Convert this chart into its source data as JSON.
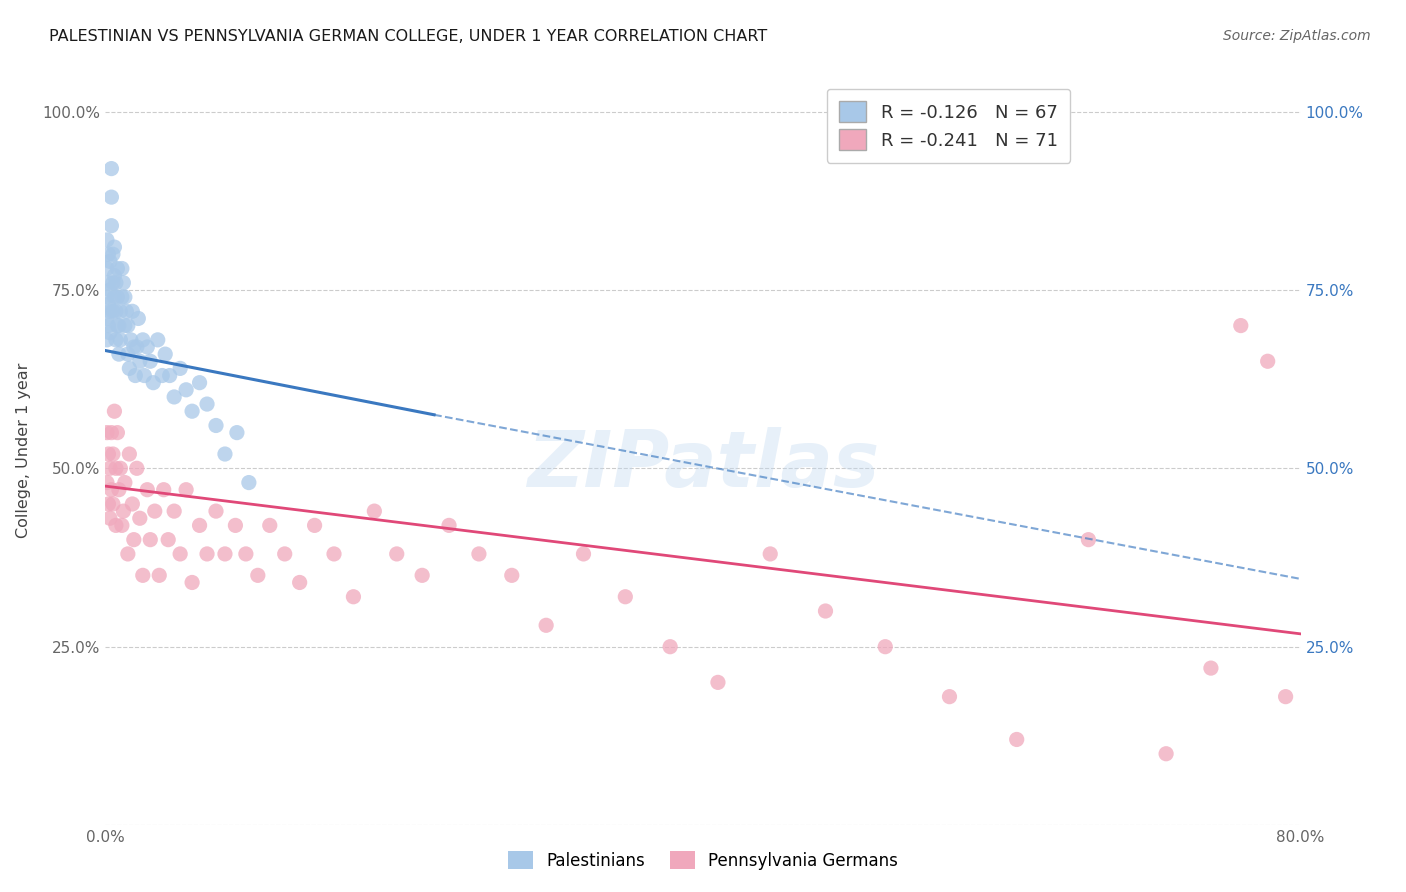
{
  "title": "PALESTINIAN VS PENNSYLVANIA GERMAN COLLEGE, UNDER 1 YEAR CORRELATION CHART",
  "source": "Source: ZipAtlas.com",
  "ylabel": "College, Under 1 year",
  "ytick_vals": [
    0.0,
    0.25,
    0.5,
    0.75,
    1.0
  ],
  "ytick_labels": [
    "",
    "25.0%",
    "50.0%",
    "75.0%",
    "100.0%"
  ],
  "xtick_vals": [
    0.0,
    0.1,
    0.2,
    0.3,
    0.4,
    0.5,
    0.6,
    0.7,
    0.8
  ],
  "xtick_labels": [
    "0.0%",
    "",
    "",
    "",
    "",
    "",
    "",
    "",
    "80.0%"
  ],
  "legend1_text": "R = -0.126   N = 67",
  "legend2_text": "R = -0.241   N = 71",
  "blue_scatter_color": "#a8c8e8",
  "pink_scatter_color": "#f0a8bc",
  "blue_line_color": "#3a78c0",
  "pink_line_color": "#e04878",
  "watermark": "ZIPatlas",
  "bottom_legend1": "Palestinians",
  "bottom_legend2": "Pennsylvania Germans",
  "xmin": 0.0,
  "xmax": 0.8,
  "ymin": 0.0,
  "ymax": 1.05,
  "pal_x": [
    0.001,
    0.001,
    0.001,
    0.001,
    0.001,
    0.002,
    0.002,
    0.002,
    0.002,
    0.003,
    0.003,
    0.003,
    0.003,
    0.004,
    0.004,
    0.004,
    0.005,
    0.005,
    0.005,
    0.006,
    0.006,
    0.006,
    0.007,
    0.007,
    0.007,
    0.008,
    0.008,
    0.008,
    0.009,
    0.009,
    0.01,
    0.01,
    0.011,
    0.011,
    0.012,
    0.013,
    0.013,
    0.014,
    0.015,
    0.015,
    0.016,
    0.017,
    0.018,
    0.019,
    0.02,
    0.021,
    0.022,
    0.023,
    0.025,
    0.026,
    0.028,
    0.03,
    0.032,
    0.035,
    0.038,
    0.04,
    0.043,
    0.046,
    0.05,
    0.054,
    0.058,
    0.063,
    0.068,
    0.074,
    0.08,
    0.088,
    0.096
  ],
  "pal_y": [
    0.68,
    0.71,
    0.74,
    0.78,
    0.82,
    0.7,
    0.73,
    0.76,
    0.8,
    0.69,
    0.72,
    0.75,
    0.79,
    0.84,
    0.88,
    0.92,
    0.72,
    0.76,
    0.8,
    0.74,
    0.77,
    0.81,
    0.68,
    0.72,
    0.76,
    0.7,
    0.74,
    0.78,
    0.66,
    0.7,
    0.68,
    0.72,
    0.74,
    0.78,
    0.76,
    0.7,
    0.74,
    0.72,
    0.66,
    0.7,
    0.64,
    0.68,
    0.72,
    0.67,
    0.63,
    0.67,
    0.71,
    0.65,
    0.68,
    0.63,
    0.67,
    0.65,
    0.62,
    0.68,
    0.63,
    0.66,
    0.63,
    0.6,
    0.64,
    0.61,
    0.58,
    0.62,
    0.59,
    0.56,
    0.52,
    0.55,
    0.48
  ],
  "pag_x": [
    0.001,
    0.001,
    0.002,
    0.002,
    0.003,
    0.003,
    0.004,
    0.004,
    0.005,
    0.005,
    0.006,
    0.007,
    0.007,
    0.008,
    0.009,
    0.01,
    0.011,
    0.012,
    0.013,
    0.015,
    0.016,
    0.018,
    0.019,
    0.021,
    0.023,
    0.025,
    0.028,
    0.03,
    0.033,
    0.036,
    0.039,
    0.042,
    0.046,
    0.05,
    0.054,
    0.058,
    0.063,
    0.068,
    0.074,
    0.08,
    0.087,
    0.094,
    0.102,
    0.11,
    0.12,
    0.13,
    0.14,
    0.153,
    0.166,
    0.18,
    0.195,
    0.212,
    0.23,
    0.25,
    0.272,
    0.295,
    0.32,
    0.348,
    0.378,
    0.41,
    0.445,
    0.482,
    0.522,
    0.565,
    0.61,
    0.658,
    0.71,
    0.74,
    0.76,
    0.778,
    0.79
  ],
  "pag_y": [
    0.55,
    0.48,
    0.52,
    0.45,
    0.5,
    0.43,
    0.55,
    0.47,
    0.52,
    0.45,
    0.58,
    0.5,
    0.42,
    0.55,
    0.47,
    0.5,
    0.42,
    0.44,
    0.48,
    0.38,
    0.52,
    0.45,
    0.4,
    0.5,
    0.43,
    0.35,
    0.47,
    0.4,
    0.44,
    0.35,
    0.47,
    0.4,
    0.44,
    0.38,
    0.47,
    0.34,
    0.42,
    0.38,
    0.44,
    0.38,
    0.42,
    0.38,
    0.35,
    0.42,
    0.38,
    0.34,
    0.42,
    0.38,
    0.32,
    0.44,
    0.38,
    0.35,
    0.42,
    0.38,
    0.35,
    0.28,
    0.38,
    0.32,
    0.25,
    0.2,
    0.38,
    0.3,
    0.25,
    0.18,
    0.12,
    0.4,
    0.1,
    0.22,
    0.7,
    0.65,
    0.18
  ]
}
